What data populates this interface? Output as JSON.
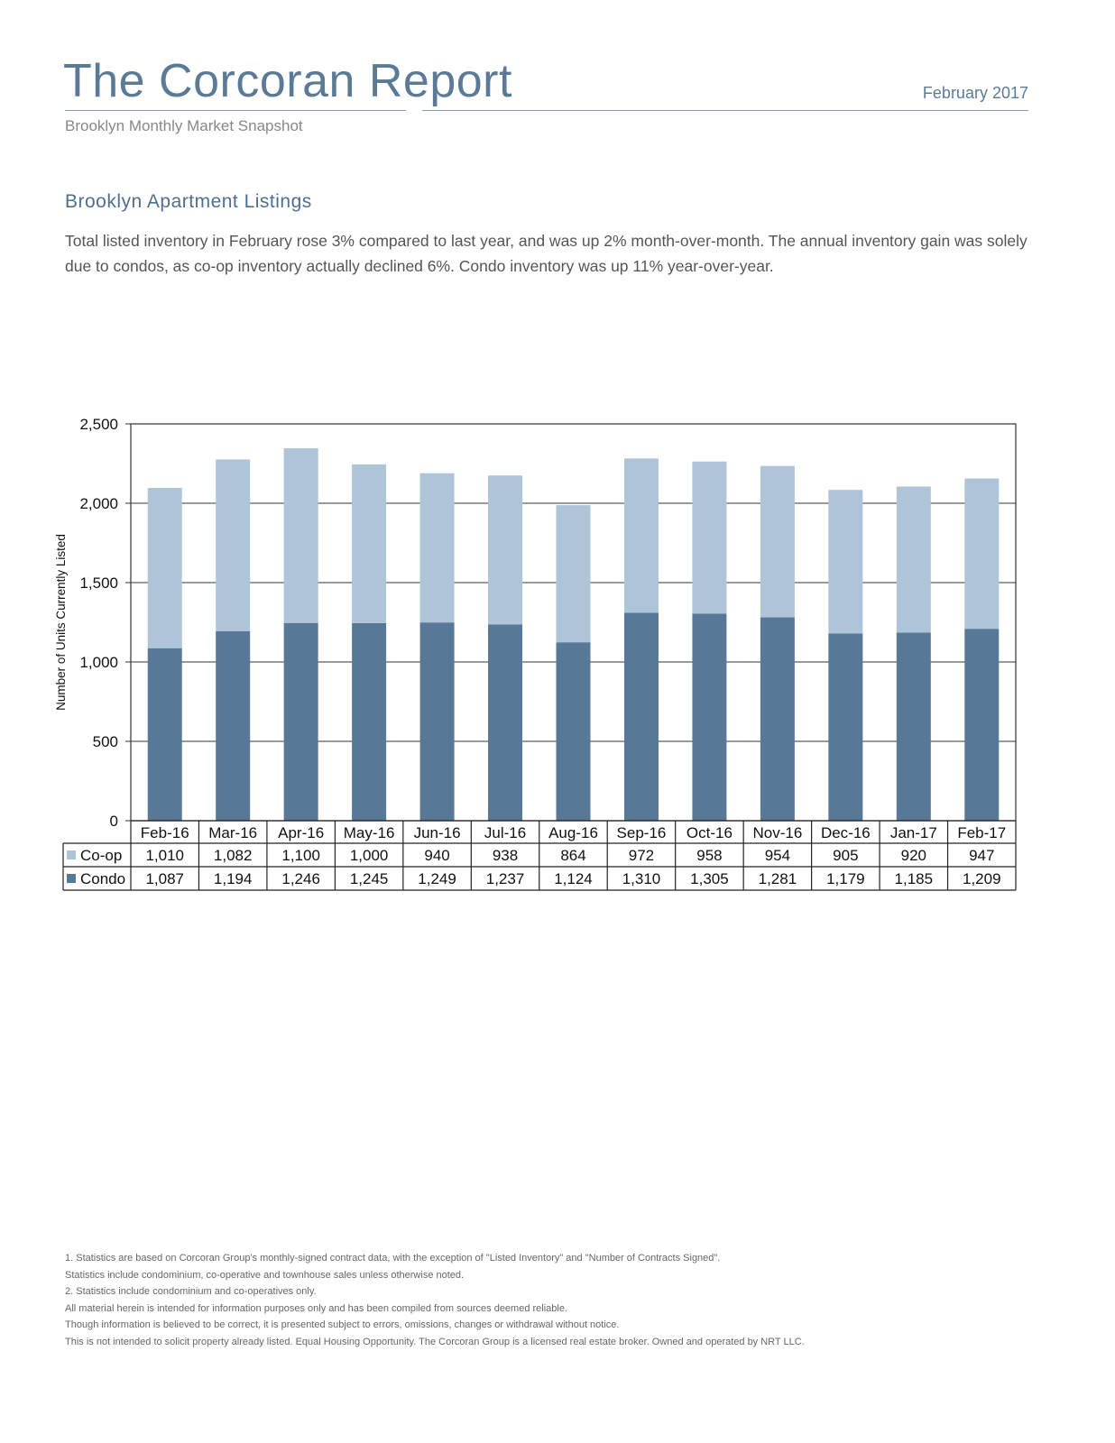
{
  "header": {
    "title": "The Corcoran Report",
    "date": "February 2017",
    "subtitle": "Brooklyn Monthly Market Snapshot"
  },
  "section": {
    "heading": "Brooklyn Apartment Listings",
    "paragraph": "Total listed inventory in February rose 3% compared to last year, and was up 2% month-over-month. The annual inventory gain was solely due to condos, as co-op inventory actually declined 6%. Condo inventory was up 11% year-over-year."
  },
  "chart_data": {
    "type": "bar",
    "stacked": true,
    "ylabel": "Number of Units Currently Listed",
    "ylim": [
      0,
      2500
    ],
    "yticks": [
      "0",
      "500",
      "1,000",
      "1,500",
      "2,000",
      "2,500"
    ],
    "grid": true,
    "legend": "data-table-left",
    "categories": [
      "Feb-16",
      "Mar-16",
      "Apr-16",
      "May-16",
      "Jun-16",
      "Jul-16",
      "Aug-16",
      "Sep-16",
      "Oct-16",
      "Nov-16",
      "Dec-16",
      "Jan-17",
      "Feb-17"
    ],
    "series": [
      {
        "name": "Condo",
        "color": "#587898",
        "values": [
          1087,
          1194,
          1246,
          1245,
          1249,
          1237,
          1124,
          1310,
          1305,
          1281,
          1179,
          1185,
          1209
        ],
        "labels": [
          "1,087",
          "1,194",
          "1,246",
          "1,245",
          "1,249",
          "1,237",
          "1,124",
          "1,310",
          "1,305",
          "1,281",
          "1,179",
          "1,185",
          "1,209"
        ]
      },
      {
        "name": "Co-op",
        "color": "#aec4d9",
        "values": [
          1010,
          1082,
          1100,
          1000,
          940,
          938,
          864,
          972,
          958,
          954,
          905,
          920,
          947
        ],
        "labels": [
          "1,010",
          "1,082",
          "1,100",
          "1,000",
          "940",
          "938",
          "864",
          "972",
          "958",
          "954",
          "905",
          "920",
          "947"
        ]
      }
    ]
  },
  "footnotes": [
    "1. Statistics are based on Corcoran Group's monthly-signed contract data, with the exception of \"Listed Inventory\" and \"Number of Contracts Signed\".",
    "Statistics include condominium, co-operative and townhouse sales unless otherwise noted.",
    "2. Statistics include condominium and co-operatives only.",
    "All material herein is intended for information purposes only and has been compiled from sources deemed reliable.",
    "Though information is believed to be correct, it is presented subject to errors, omissions, changes or withdrawal without notice.",
    "This is not intended to solicit property already listed. Equal Housing Opportunity. The Corcoran Group is a licensed real estate broker. Owned and operated by NRT LLC."
  ]
}
